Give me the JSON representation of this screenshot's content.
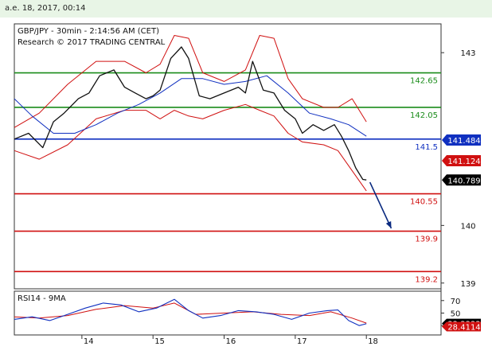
{
  "window": {
    "timestamp": "a.e. 18, 2017, 00:14"
  },
  "chart_data": [
    {
      "type": "line",
      "title": "GBP/JPY - 30min - 2:14:56 AM (CET)",
      "subtitle": "Research © 2017 TRADING CENTRAL",
      "ylim": [
        138.9,
        143.5
      ],
      "y_ticks": [
        {
          "value": 143,
          "label": "143"
        },
        {
          "value": 140,
          "label": "140"
        },
        {
          "value": 139,
          "label": "139"
        }
      ],
      "x_ticks": [
        {
          "x": 14,
          "label": "14"
        },
        {
          "x": 15,
          "label": "15"
        },
        {
          "x": 16,
          "label": "16"
        },
        {
          "x": 17,
          "label": "17"
        },
        {
          "x": 18,
          "label": "18"
        }
      ],
      "xlim": [
        13.05,
        19.05
      ],
      "levels": [
        {
          "value": 142.65,
          "label": "142.65",
          "color": "#1a8c1a"
        },
        {
          "value": 142.05,
          "label": "142.05",
          "color": "#1a8c1a"
        },
        {
          "value": 141.5,
          "label": "141.5",
          "color": "#1030c0"
        },
        {
          "value": 140.55,
          "label": "140.55",
          "color": "#d01010"
        },
        {
          "value": 139.9,
          "label": "139.9",
          "color": "#d01010"
        },
        {
          "value": 139.2,
          "label": "139.2",
          "color": "#d01010"
        }
      ],
      "tags": [
        {
          "value": 141.484,
          "label": "141.484",
          "color": "#1030c0"
        },
        {
          "value": 141.124,
          "label": "141.124",
          "color": "#d01010"
        },
        {
          "value": 140.789,
          "label": "140.789",
          "color": "#000000"
        }
      ],
      "price": {
        "x": [
          13.05,
          13.25,
          13.45,
          13.6,
          13.75,
          13.95,
          14.1,
          14.25,
          14.45,
          14.6,
          14.75,
          14.9,
          15.0,
          15.1,
          15.25,
          15.4,
          15.5,
          15.65,
          15.8,
          16.0,
          16.2,
          16.3,
          16.4,
          16.55,
          16.7,
          16.85,
          17.0,
          17.1,
          17.25,
          17.4,
          17.55,
          17.65,
          17.75,
          17.85,
          17.95,
          18.0
        ],
        "y": [
          141.5,
          141.6,
          141.35,
          141.8,
          141.95,
          142.2,
          142.3,
          142.6,
          142.7,
          142.4,
          142.3,
          142.2,
          142.25,
          142.35,
          142.9,
          143.1,
          142.9,
          142.25,
          142.2,
          142.3,
          142.4,
          142.3,
          142.85,
          142.35,
          142.3,
          142.0,
          141.85,
          141.6,
          141.75,
          141.65,
          141.75,
          141.55,
          141.3,
          141.0,
          140.8,
          140.79
        ]
      },
      "ma_slow": {
        "x": [
          13.05,
          13.3,
          13.6,
          13.9,
          14.2,
          14.5,
          14.8,
          15.1,
          15.4,
          15.7,
          16.0,
          16.3,
          16.6,
          16.9,
          17.2,
          17.5,
          17.75,
          18.0
        ],
        "y": [
          142.2,
          141.9,
          141.6,
          141.6,
          141.75,
          141.95,
          142.1,
          142.3,
          142.55,
          142.55,
          142.45,
          142.5,
          142.6,
          142.3,
          141.95,
          141.85,
          141.75,
          141.55
        ]
      },
      "bollinger_upper": {
        "x": [
          13.05,
          13.4,
          13.8,
          14.2,
          14.6,
          14.9,
          15.1,
          15.3,
          15.5,
          15.7,
          16.0,
          16.3,
          16.5,
          16.7,
          16.9,
          17.1,
          17.4,
          17.6,
          17.8,
          18.0
        ],
        "y": [
          141.7,
          141.95,
          142.45,
          142.85,
          142.85,
          142.65,
          142.8,
          143.3,
          143.25,
          142.65,
          142.5,
          142.7,
          143.3,
          143.25,
          142.55,
          142.2,
          142.05,
          142.05,
          142.2,
          141.8
        ]
      },
      "bollinger_lower": {
        "x": [
          13.05,
          13.4,
          13.8,
          14.2,
          14.6,
          14.9,
          15.1,
          15.3,
          15.5,
          15.7,
          16.0,
          16.3,
          16.5,
          16.7,
          16.9,
          17.1,
          17.4,
          17.6,
          17.8,
          18.0
        ],
        "y": [
          141.3,
          141.15,
          141.4,
          141.85,
          142.0,
          142.0,
          141.85,
          142.0,
          141.9,
          141.85,
          142.0,
          142.1,
          142.0,
          141.9,
          141.6,
          141.45,
          141.4,
          141.3,
          140.95,
          140.6
        ]
      },
      "forecast": {
        "x": [
          18.05,
          18.35
        ],
        "y": [
          140.75,
          139.95
        ]
      }
    },
    {
      "type": "line",
      "title": "RSI14 - 9MA",
      "ylim": [
        15,
        85
      ],
      "y_ticks": [
        {
          "value": 70,
          "label": "70"
        },
        {
          "value": 50,
          "label": "50"
        },
        {
          "value": 30,
          "label": "30"
        }
      ],
      "rsi": {
        "x": [
          13.05,
          13.3,
          13.55,
          13.8,
          14.05,
          14.3,
          14.55,
          14.8,
          15.05,
          15.3,
          15.5,
          15.7,
          15.95,
          16.2,
          16.45,
          16.7,
          16.95,
          17.2,
          17.45,
          17.6,
          17.75,
          17.9,
          18.0
        ],
        "y": [
          40,
          44,
          38,
          48,
          58,
          66,
          63,
          52,
          58,
          72,
          54,
          42,
          46,
          54,
          52,
          48,
          40,
          50,
          54,
          55,
          38,
          30,
          33
        ]
      },
      "rsi_ma": {
        "x": [
          13.05,
          13.4,
          13.8,
          14.2,
          14.6,
          15.0,
          15.3,
          15.6,
          16.0,
          16.4,
          16.8,
          17.2,
          17.5,
          17.8,
          18.0
        ],
        "y": [
          44,
          42,
          46,
          56,
          62,
          58,
          66,
          48,
          50,
          52,
          48,
          46,
          52,
          42,
          34
        ]
      },
      "tags": [
        {
          "value": 33.3333,
          "label": "33.3333",
          "color": "#000000"
        },
        {
          "value": 28.4114,
          "label": "28.4114",
          "color": "#d01010"
        }
      ]
    }
  ]
}
